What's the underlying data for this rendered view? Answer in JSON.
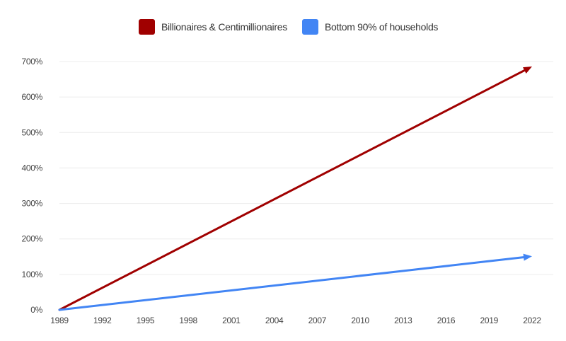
{
  "chart_data": {
    "type": "line",
    "title": "",
    "xlabel": "",
    "ylabel": "",
    "x_ticks": [
      "1989",
      "1992",
      "1995",
      "1998",
      "2001",
      "2004",
      "2007",
      "2010",
      "2013",
      "2016",
      "2019",
      "2022"
    ],
    "y_ticks": [
      "0%",
      "100%",
      "200%",
      "300%",
      "400%",
      "500%",
      "600%",
      "700%"
    ],
    "xlim": [
      1989,
      2022
    ],
    "ylim": [
      0,
      700
    ],
    "grid": true,
    "legend_position": "top-center",
    "series": [
      {
        "name": "Billionaires & Centimillionaires",
        "color": "#a00000",
        "marker": "arrow",
        "points": [
          {
            "x": 1989,
            "y": 0
          },
          {
            "x": 2022,
            "y": 686
          }
        ]
      },
      {
        "name": "Bottom 90% of households",
        "color": "#4285f4",
        "marker": "arrow",
        "points": [
          {
            "x": 1989,
            "y": 0
          },
          {
            "x": 2022,
            "y": 151
          }
        ]
      }
    ]
  }
}
